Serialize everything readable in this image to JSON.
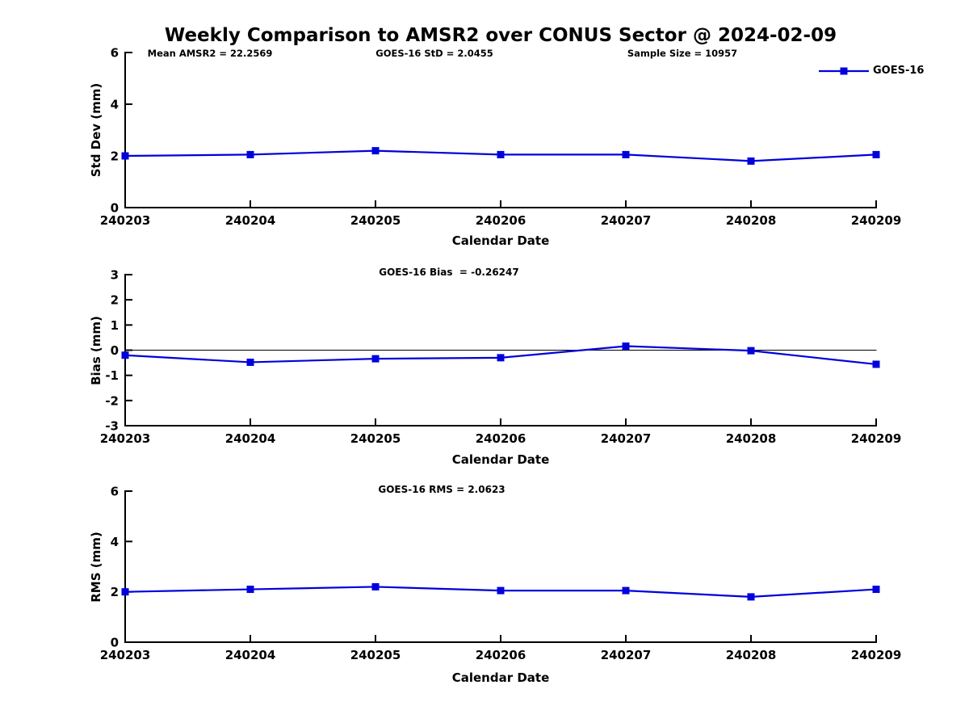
{
  "title": "Weekly Comparison to AMSR2 over CONUS Sector @ 2024-02-09",
  "header_annotations": {
    "mean_amsr2": "Mean AMSR2 = 22.2569",
    "goes16_std": "GOES-16 StD = 2.0455",
    "sample_size": "Sample Size = 10957"
  },
  "legend": {
    "label": "GOES-16"
  },
  "colors": {
    "series": "#0000dd",
    "axis": "#000000",
    "background": "#ffffff"
  },
  "chart_data": [
    {
      "type": "line",
      "panel": "std-dev",
      "title": "",
      "ylabel": "Std Dev (mm)",
      "xlabel": "Calendar Date",
      "categories": [
        "240203",
        "240204",
        "240205",
        "240206",
        "240207",
        "240208",
        "240209"
      ],
      "series": [
        {
          "name": "GOES-16",
          "marker": "square",
          "values": [
            2.0,
            2.05,
            2.2,
            2.05,
            2.05,
            1.8,
            2.05
          ]
        }
      ],
      "ylim": [
        0,
        6
      ],
      "yticks": [
        0,
        2,
        4,
        6
      ],
      "zero_line": false,
      "grid": false,
      "legend_position": "top-right"
    },
    {
      "type": "line",
      "panel": "bias",
      "title": "GOES-16 Bias  = -0.26247",
      "ylabel": "Bias (mm)",
      "xlabel": "Calendar Date",
      "categories": [
        "240203",
        "240204",
        "240205",
        "240206",
        "240207",
        "240208",
        "240209"
      ],
      "series": [
        {
          "name": "GOES-16",
          "marker": "square",
          "values": [
            -0.2,
            -0.48,
            -0.34,
            -0.3,
            0.16,
            -0.02,
            -0.56
          ]
        }
      ],
      "ylim": [
        -3,
        3
      ],
      "yticks": [
        -3,
        -2,
        -1,
        0,
        1,
        2,
        3
      ],
      "zero_line": true,
      "grid": false,
      "legend_position": "none"
    },
    {
      "type": "line",
      "panel": "rms",
      "title": "GOES-16 RMS = 2.0623",
      "ylabel": "RMS (mm)",
      "xlabel": "Calendar Date",
      "categories": [
        "240203",
        "240204",
        "240205",
        "240206",
        "240207",
        "240208",
        "240209"
      ],
      "series": [
        {
          "name": "GOES-16",
          "marker": "square",
          "values": [
            2.0,
            2.1,
            2.2,
            2.05,
            2.05,
            1.8,
            2.1
          ]
        }
      ],
      "ylim": [
        0,
        6
      ],
      "yticks": [
        0,
        2,
        4,
        6
      ],
      "zero_line": false,
      "grid": false,
      "legend_position": "none"
    }
  ]
}
